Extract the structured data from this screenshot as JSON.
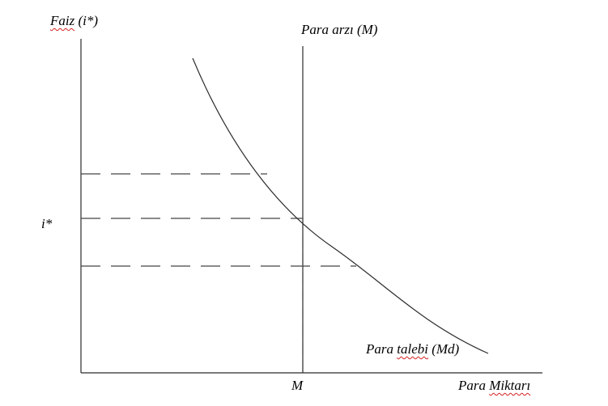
{
  "labels": {
    "y_axis_word": "Faiz",
    "y_axis_rest": " (i*)",
    "supply_label": "Para arzı (M)",
    "equilibrium_rate": "i*",
    "demand_word_1": "Para ",
    "demand_word_2": "talebi",
    "demand_word_3": " (Md)",
    "equilibrium_quantity": "M",
    "x_axis_word_1": "Para ",
    "x_axis_word_2": "Miktarı"
  },
  "colors": {
    "line": "#2b2b2b",
    "dash": "#444444",
    "spellcheck": "#d62020"
  }
}
